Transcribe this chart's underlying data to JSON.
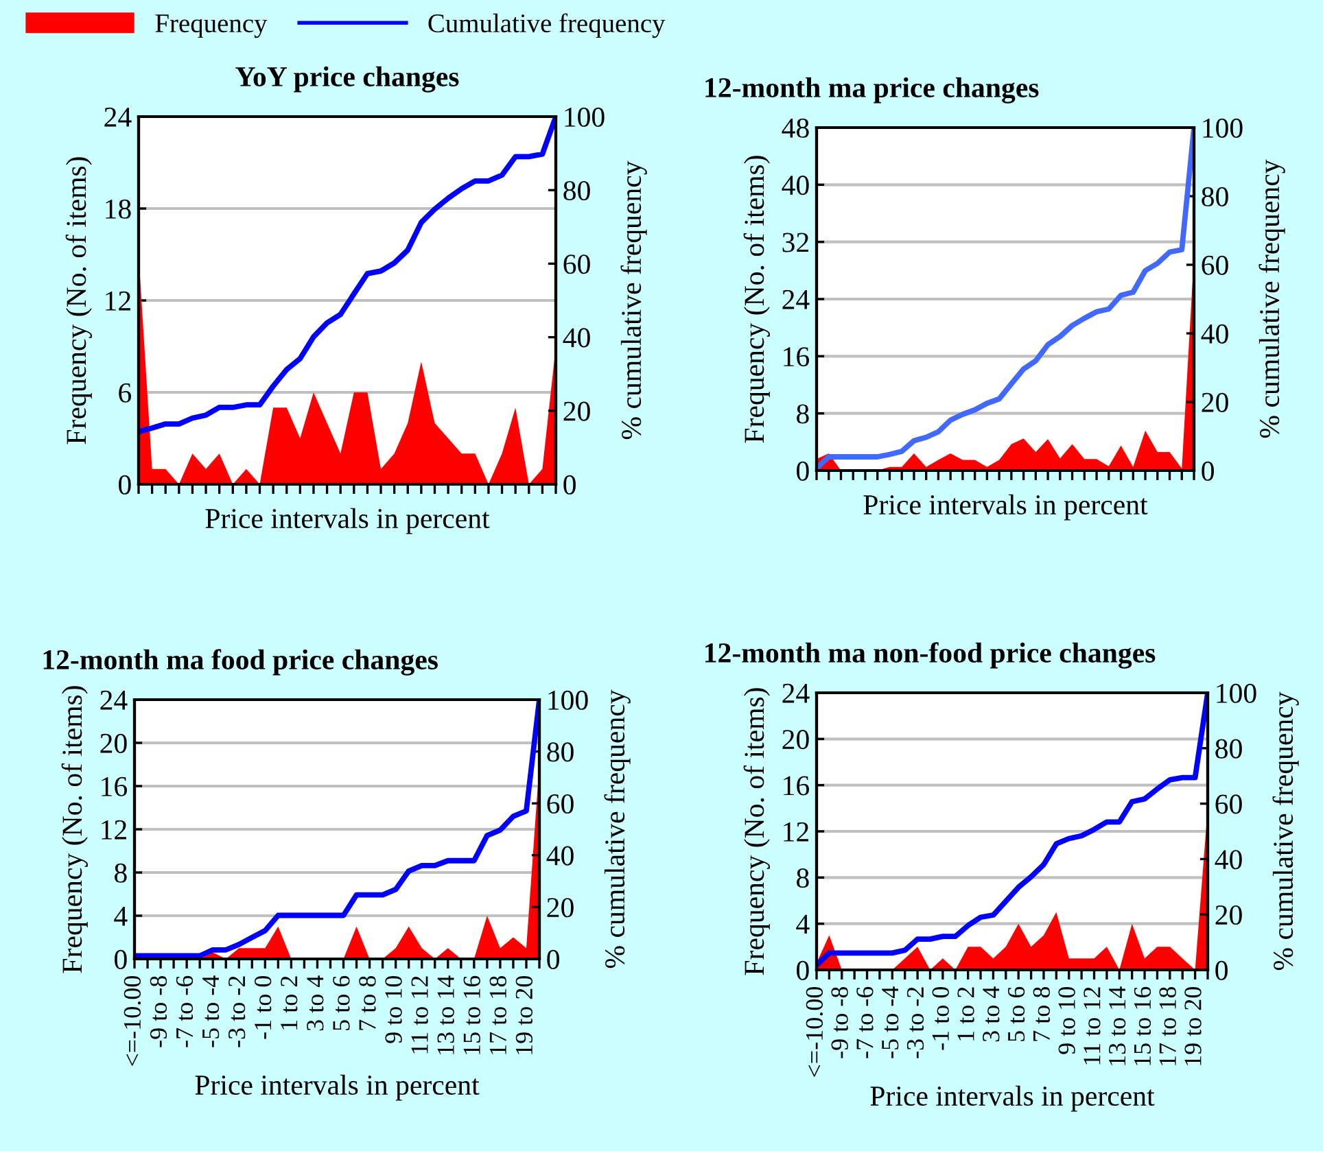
{
  "chart_data": [
    {
      "type": "area",
      "title": "YoY price changes",
      "xlabel": "Price intervals in percent",
      "ylabel": "Frequency (No. of items)",
      "y2label": "% cumulative frequency",
      "legend": "top left",
      "grid": "y",
      "categories": [
        null,
        null,
        null,
        null,
        null,
        null,
        null,
        null,
        null,
        null,
        null,
        null,
        null,
        null,
        null,
        null,
        null,
        null,
        null,
        null,
        null,
        null,
        null,
        null,
        null,
        null,
        null,
        null,
        null,
        null,
        null,
        null
      ],
      "ylim": [
        0,
        24
      ],
      "yticks": [
        0,
        6,
        12,
        18,
        24
      ],
      "y2lim": [
        0,
        100
      ],
      "y2ticks": [
        0,
        20,
        40,
        60,
        80,
        100
      ],
      "series": [
        {
          "name": "Frequency",
          "color": "#ff0000",
          "values": [
            15,
            1,
            1,
            0,
            2,
            1,
            2,
            0,
            1,
            0,
            5,
            5,
            3,
            6,
            4,
            2,
            6,
            6,
            1,
            2,
            4,
            8,
            4,
            3,
            2,
            2,
            0,
            2,
            5,
            0,
            1,
            9
          ]
        },
        {
          "name": "Cumulative frequency",
          "type": "line",
          "axis": "y2",
          "color": "#0000ff",
          "values": [
            14.3,
            15.3,
            16.4,
            16.4,
            18.0,
            18.8,
            20.9,
            20.9,
            21.6,
            21.6,
            26.7,
            31.2,
            34.2,
            40.1,
            43.9,
            46.2,
            51.8,
            57.3,
            58.0,
            60.2,
            63.7,
            71.2,
            74.8,
            77.8,
            80.4,
            82.5,
            82.5,
            84.1,
            89.1,
            89.1,
            89.8,
            100
          ]
        }
      ]
    },
    {
      "type": "area",
      "title": "12-month ma price changes",
      "xlabel": "Price intervals in percent",
      "ylabel": "Frequency (No. of items)",
      "y2label": "% cumulative frequency",
      "grid": "y",
      "categories": [
        null,
        null,
        null,
        null,
        null,
        null,
        null,
        null,
        null,
        null,
        null,
        null,
        null,
        null,
        null,
        null,
        null,
        null,
        null,
        null,
        null,
        null,
        null,
        null,
        null,
        null,
        null,
        null,
        null,
        null,
        null,
        null
      ],
      "ylim": [
        0,
        48
      ],
      "yticks": [
        0,
        8,
        16,
        24,
        32,
        40,
        48
      ],
      "y2lim": [
        0,
        100
      ],
      "y2ticks": [
        0,
        20,
        40,
        60,
        80,
        100
      ],
      "series": [
        {
          "color": "#ff0000",
          "values": [
            1.6,
            2.4,
            0,
            0,
            0,
            0,
            0.5,
            0.5,
            2.4,
            0.5,
            1.5,
            2.4,
            1.5,
            1.5,
            0.5,
            1.5,
            3.7,
            4.5,
            2.6,
            4.4,
            1.7,
            3.7,
            1.6,
            1.6,
            0.6,
            3.5,
            0.5,
            5.6,
            2.6,
            2.6,
            0.3,
            30
          ]
        },
        {
          "type": "line",
          "axis": "y2",
          "color": "#4169ff",
          "values": [
            0.7,
            4,
            4,
            4,
            4,
            4,
            4.7,
            5.6,
            8.7,
            9.7,
            11.3,
            14.7,
            16.4,
            17.7,
            19.6,
            20.9,
            25.3,
            29.6,
            32,
            36.7,
            39.1,
            42.3,
            44.4,
            46.3,
            47.1,
            51.1,
            52,
            58.3,
            60.4,
            63.7,
            64.4,
            100
          ]
        }
      ]
    },
    {
      "type": "area",
      "title": "12-month ma food price changes",
      "xlabel": "Price intervals in percent",
      "ylabel": "Frequency (No. of items)",
      "y2label": "% cumulative frequency",
      "grid": "y",
      "categories": [
        "<=-10.00",
        null,
        "-9 to -8",
        null,
        "-7 to -6",
        null,
        "-5 to -4",
        null,
        "-3 to -2",
        null,
        "-1 to 0",
        null,
        "1 to 2",
        null,
        "3 to 4",
        null,
        "5 to 6",
        null,
        "7 to 8",
        null,
        "9 to 10",
        null,
        "11 to 12",
        null,
        "13 to 14",
        null,
        "15 to 16",
        null,
        "17 to 18",
        null,
        "19 to 20",
        null
      ],
      "ylim": [
        0,
        24
      ],
      "yticks": [
        0,
        4,
        8,
        12,
        16,
        20,
        24
      ],
      "y2lim": [
        0,
        100
      ],
      "y2ticks": [
        0,
        20,
        40,
        60,
        80,
        100
      ],
      "series": [
        {
          "color": "#ff0000",
          "values": [
            0.5,
            0,
            0,
            0,
            0,
            0,
            0.6,
            0,
            1,
            1,
            1,
            3,
            0,
            0,
            0,
            0,
            0,
            3,
            0,
            0,
            1,
            3,
            1,
            0,
            1,
            0,
            0,
            4,
            1,
            2,
            1,
            18
          ]
        },
        {
          "type": "line",
          "axis": "y2",
          "color": "#0000ff",
          "values": [
            1.2,
            1.2,
            1.2,
            1.2,
            1.2,
            1.2,
            3.5,
            3.5,
            5.6,
            8.3,
            10.9,
            16.8,
            16.8,
            16.8,
            16.8,
            16.8,
            16.8,
            24.7,
            24.7,
            24.7,
            26.8,
            33.9,
            36,
            36,
            37.9,
            37.9,
            37.9,
            47.6,
            49.7,
            55,
            57.1,
            100
          ]
        }
      ]
    },
    {
      "type": "area",
      "title": "12-month ma non-food price changes",
      "xlabel": "Price intervals in percent",
      "ylabel": "Frequency (No. of items)",
      "y2label": "% cumulative frequency",
      "grid": "y",
      "categories": [
        "<=-10.00",
        null,
        "-9 to -8",
        null,
        "-7 to -6",
        null,
        "-5 to -4",
        null,
        "-3 to -2",
        null,
        "-1 to 0",
        null,
        "1 to 2",
        null,
        "3 to 4",
        null,
        "5 to 6",
        null,
        "7 to 8",
        null,
        "9 to 10",
        null,
        "11 to 12",
        null,
        "13 to 14",
        null,
        "15 to 16",
        null,
        "17 to 18",
        null,
        "19 to 20",
        null
      ],
      "ylim": [
        0,
        24
      ],
      "yticks": [
        0,
        4,
        8,
        12,
        16,
        20,
        24
      ],
      "y2lim": [
        0,
        100
      ],
      "y2ticks": [
        0,
        20,
        40,
        60,
        80,
        100
      ],
      "series": [
        {
          "color": "#ff0000",
          "values": [
            0.6,
            3,
            0,
            0,
            0,
            0,
            0,
            1,
            2,
            0,
            1,
            0,
            2,
            2,
            1,
            2,
            4,
            2,
            3,
            5,
            1,
            1,
            1,
            2,
            0,
            4,
            1,
            2,
            2,
            1,
            0,
            14
          ]
        },
        {
          "type": "line",
          "axis": "y2",
          "color": "#0000ff",
          "values": [
            1.7,
            6.1,
            6.1,
            6.1,
            6.1,
            6.1,
            6.1,
            7.1,
            11.1,
            11.1,
            12.1,
            12.1,
            16,
            19,
            19.8,
            24.8,
            29.8,
            33.6,
            38,
            45.5,
            47.4,
            48.4,
            50.7,
            53.4,
            53.4,
            60.7,
            61.7,
            65.3,
            68.6,
            69.4,
            69.4,
            100
          ]
        }
      ]
    }
  ]
}
